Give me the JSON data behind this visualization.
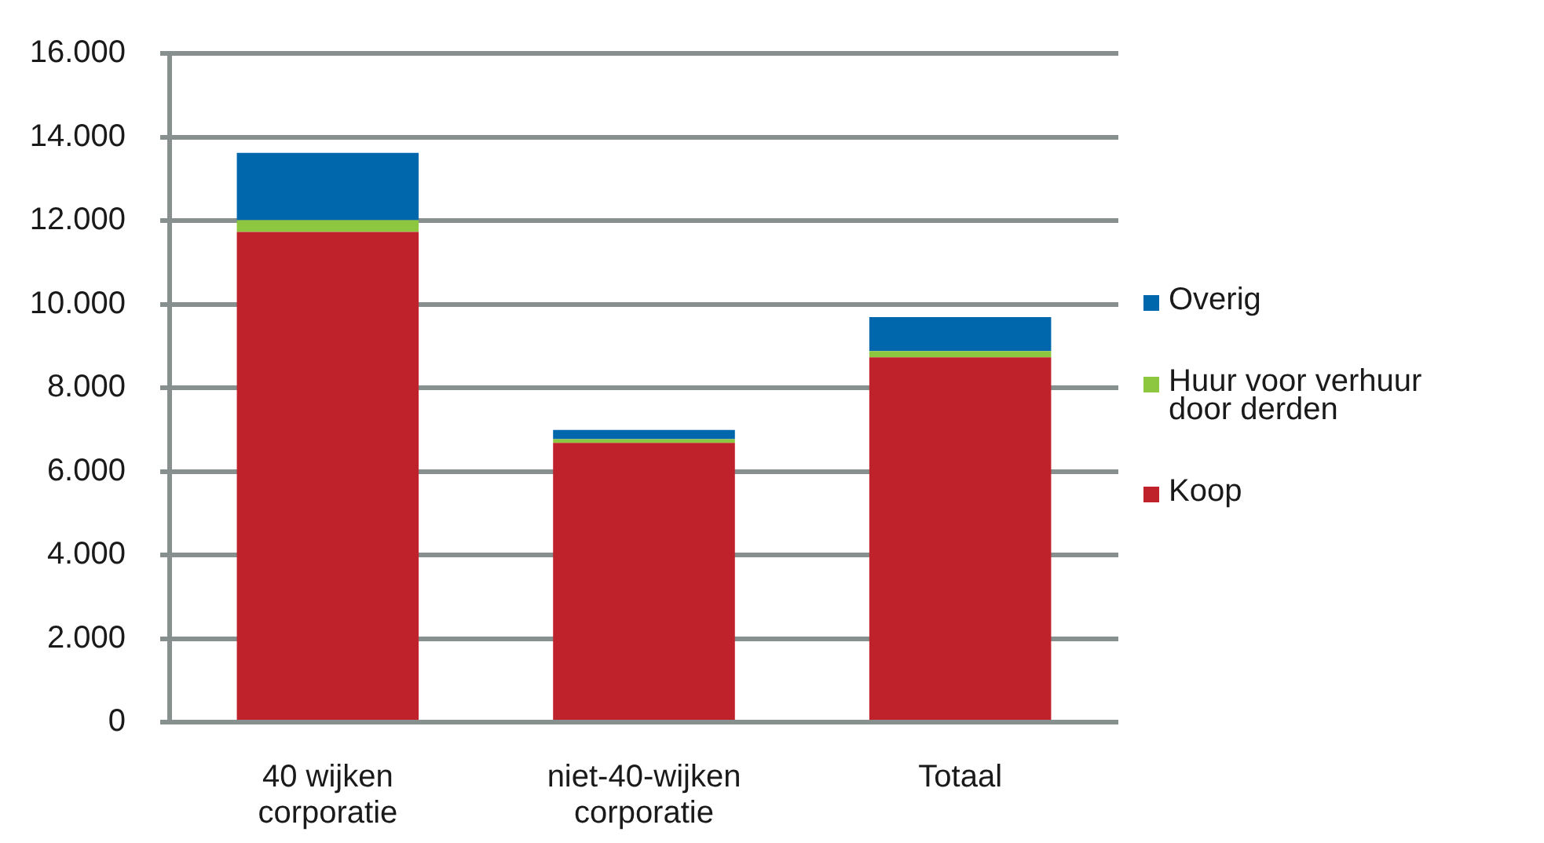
{
  "chart_data": {
    "type": "bar",
    "categories": [
      "40 wijken corporatie",
      "niet-40-wijken corporatie",
      "Totaal"
    ],
    "stacked": true,
    "series": [
      {
        "name": "Koop",
        "color": "#c0222b",
        "values": [
          11730,
          6680,
          8730
        ]
      },
      {
        "name": "Huur voor verhuur door derden",
        "color": "#8dc63f",
        "values": [
          280,
          90,
          150
        ]
      },
      {
        "name": "Overig",
        "color": "#0067ac",
        "values": [
          1610,
          220,
          810
        ]
      }
    ],
    "ylim": [
      0,
      16000
    ],
    "yticks": [
      {
        "value": 0,
        "label": "0"
      },
      {
        "value": 2000,
        "label": "2.000"
      },
      {
        "value": 4000,
        "label": "4.000"
      },
      {
        "value": 6000,
        "label": "6.000"
      },
      {
        "value": 8000,
        "label": "8.000"
      },
      {
        "value": 10000,
        "label": "10.000"
      },
      {
        "value": 12000,
        "label": "12.000"
      },
      {
        "value": 14000,
        "label": "14.000"
      },
      {
        "value": 16000,
        "label": "16.000"
      }
    ],
    "grid": "y",
    "legend": "right"
  }
}
